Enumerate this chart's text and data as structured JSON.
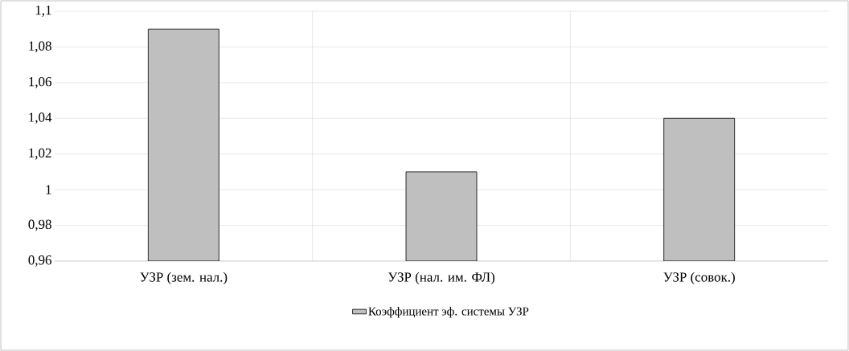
{
  "chart_data": {
    "type": "bar",
    "categories": [
      "УЗР (зем. нал.)",
      "УЗР (нал. им. ФЛ)",
      "УЗР (совок.)"
    ],
    "series": [
      {
        "name": "Коэффициент эф. системы УЗР",
        "color": "#bfbfbf",
        "values": [
          1.09,
          1.01,
          1.04
        ]
      }
    ],
    "ylim": [
      0.96,
      1.1
    ],
    "yticks": [
      {
        "value": 0.96,
        "label": "0,96"
      },
      {
        "value": 0.98,
        "label": "0,98"
      },
      1,
      {
        "value": 1.02,
        "label": "1,02"
      },
      {
        "value": 1.04,
        "label": "1,04"
      },
      {
        "value": 1.06,
        "label": "1,06"
      },
      {
        "value": 1.08,
        "label": "1,08"
      },
      {
        "value": 1.1,
        "label": "1,1"
      }
    ],
    "grid": true,
    "legend": "bottom"
  }
}
